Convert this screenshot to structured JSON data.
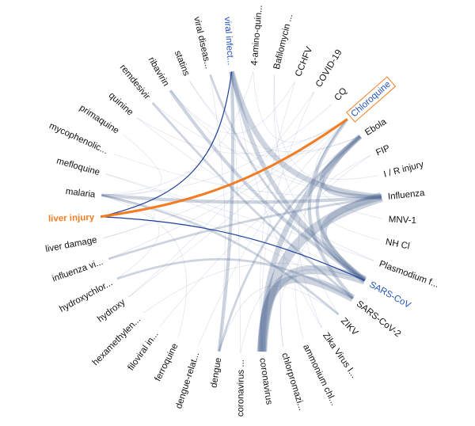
{
  "diagram": {
    "type": "hierarchical-edge-bundling",
    "colors": {
      "edge": "#4a6490",
      "highlight_edge": "#f47c20",
      "highlight_text": "#f47c20",
      "linked_text": "#2452b8",
      "linked_edge": "#1d3f9a",
      "label": "#111111"
    },
    "selected_node": "Chloroquine",
    "nodes": [
      {
        "label": "viral infect...",
        "state": "linked"
      },
      {
        "label": "4-amino-quin...",
        "state": ""
      },
      {
        "label": "Bafilomycin ...",
        "state": ""
      },
      {
        "label": "CCHFV",
        "state": ""
      },
      {
        "label": "COVID-19",
        "state": ""
      },
      {
        "label": "CQ",
        "state": ""
      },
      {
        "label": "Chloroquine",
        "state": "selected"
      },
      {
        "label": "Ebola",
        "state": ""
      },
      {
        "label": "FIP",
        "state": ""
      },
      {
        "label": "I / R injury",
        "state": ""
      },
      {
        "label": "Influenza",
        "state": ""
      },
      {
        "label": "MNV-1",
        "state": ""
      },
      {
        "label": "NH Cl",
        "state": ""
      },
      {
        "label": "Plasmodium f...",
        "state": ""
      },
      {
        "label": "SARS-CoV",
        "state": "linked"
      },
      {
        "label": "SARS-CoV-2",
        "state": ""
      },
      {
        "label": "ZIKV",
        "state": ""
      },
      {
        "label": "Zika Virus I...",
        "state": ""
      },
      {
        "label": "ammonium chl...",
        "state": ""
      },
      {
        "label": "chlorpromazi...",
        "state": ""
      },
      {
        "label": "coronavirus",
        "state": ""
      },
      {
        "label": "coronavirus ...",
        "state": ""
      },
      {
        "label": "dengue",
        "state": ""
      },
      {
        "label": "dengue-relat...",
        "state": ""
      },
      {
        "label": "ferroquine",
        "state": ""
      },
      {
        "label": "filoviral in...",
        "state": ""
      },
      {
        "label": "hexamethylen...",
        "state": ""
      },
      {
        "label": "hydroxy",
        "state": ""
      },
      {
        "label": "hydroxychlor...",
        "state": ""
      },
      {
        "label": "influenza vi...",
        "state": ""
      },
      {
        "label": "liver damage",
        "state": ""
      },
      {
        "label": "liver injury",
        "state": "highlight"
      },
      {
        "label": "malaria",
        "state": ""
      },
      {
        "label": "mefloquine",
        "state": ""
      },
      {
        "label": "mycophenolic...",
        "state": ""
      },
      {
        "label": "primaquine",
        "state": ""
      },
      {
        "label": "quinine",
        "state": ""
      },
      {
        "label": "remdesivir",
        "state": ""
      },
      {
        "label": "ribavirin",
        "state": ""
      },
      {
        "label": "statins",
        "state": ""
      },
      {
        "label": "viral diseas...",
        "state": ""
      }
    ],
    "edges": [
      [
        "Chloroquine",
        "liver injury",
        6,
        "highlight"
      ],
      [
        "viral infect...",
        "liver injury",
        2,
        "linked"
      ],
      [
        "liver injury",
        "SARS-CoV",
        2,
        "linked"
      ],
      [
        "Influenza",
        "coronavirus",
        9,
        ""
      ],
      [
        "SARS-CoV",
        "coronavirus",
        8,
        ""
      ],
      [
        "SARS-CoV-2",
        "coronavirus",
        7,
        ""
      ],
      [
        "Ebola",
        "coronavirus",
        5,
        ""
      ],
      [
        "Influenza",
        "SARS-CoV",
        6,
        ""
      ],
      [
        "viral infect...",
        "Influenza",
        5,
        ""
      ],
      [
        "viral infect...",
        "SARS-CoV",
        4,
        ""
      ],
      [
        "Ebola",
        "Influenza",
        4,
        ""
      ],
      [
        "malaria",
        "Influenza",
        3,
        ""
      ],
      [
        "ribavirin",
        "SARS-CoV",
        3,
        ""
      ],
      [
        "dengue",
        "viral infect...",
        3,
        ""
      ],
      [
        "Chloroquine",
        "SARS-CoV-2",
        3,
        ""
      ],
      [
        "Ebola",
        "SARS-CoV",
        3,
        ""
      ],
      [
        "malaria",
        "ZIKV",
        2,
        ""
      ],
      [
        "influenza vi...",
        "Influenza",
        2,
        ""
      ],
      [
        "hydroxychlor...",
        "SARS-CoV-2",
        2,
        ""
      ],
      [
        "dengue",
        "Ebola",
        2,
        ""
      ],
      [
        "remdesivir",
        "SARS-CoV-2",
        2,
        ""
      ],
      [
        "viral diseas...",
        "SARS-CoV",
        2,
        ""
      ],
      [
        "CQ",
        "malaria",
        1,
        ""
      ],
      [
        "COVID-19",
        "hydroxy",
        1,
        ""
      ],
      [
        "CCHFV",
        "ribavirin",
        1,
        ""
      ],
      [
        "Bafilomycin ...",
        "Influenza",
        1,
        ""
      ],
      [
        "4-amino-quin...",
        "malaria",
        1,
        ""
      ],
      [
        "FIP",
        "coronavirus",
        1,
        ""
      ],
      [
        "I / R injury",
        "Chloroquine",
        1,
        ""
      ],
      [
        "MNV-1",
        "Chloroquine",
        1,
        ""
      ],
      [
        "NH Cl",
        "Influenza",
        1,
        ""
      ],
      [
        "Plasmodium f...",
        "quinine",
        1,
        ""
      ],
      [
        "Plasmodium f...",
        "mefloquine",
        1,
        ""
      ],
      [
        "ZIKV",
        "Chloroquine",
        1,
        ""
      ],
      [
        "Zika Virus I...",
        "viral infect...",
        1,
        ""
      ],
      [
        "ammonium chl...",
        "Influenza",
        1,
        ""
      ],
      [
        "chlorpromazi...",
        "SARS-CoV",
        1,
        ""
      ],
      [
        "coronavirus ...",
        "viral infect...",
        1,
        ""
      ],
      [
        "dengue-relat...",
        "Chloroquine",
        1,
        ""
      ],
      [
        "ferroquine",
        "malaria",
        1,
        ""
      ],
      [
        "filoviral in...",
        "Ebola",
        1,
        ""
      ],
      [
        "hexamethylen...",
        "SARS-CoV",
        1,
        ""
      ],
      [
        "liver damage",
        "Chloroquine",
        1,
        ""
      ],
      [
        "liver damage",
        "malaria",
        1,
        ""
      ],
      [
        "mycophenolic...",
        "Influenza",
        1,
        ""
      ],
      [
        "primaquine",
        "malaria",
        1,
        ""
      ],
      [
        "quinine",
        "Chloroquine",
        1,
        ""
      ],
      [
        "statins",
        "Influenza",
        1,
        ""
      ],
      [
        "statins",
        "Ebola",
        1,
        ""
      ],
      [
        "mefloquine",
        "SARS-CoV",
        1,
        ""
      ],
      [
        "remdesivir",
        "Ebola",
        1,
        ""
      ],
      [
        "ribavirin",
        "Influenza",
        1,
        ""
      ],
      [
        "viral diseas...",
        "dengue",
        1,
        ""
      ],
      [
        "hydroxy",
        "Chloroquine",
        1,
        ""
      ],
      [
        "influenza vi...",
        "Chloroquine",
        1,
        ""
      ],
      [
        "CCHFV",
        "coronavirus",
        1,
        ""
      ],
      [
        "COVID-19",
        "coronavirus",
        1,
        ""
      ],
      [
        "4-amino-quin...",
        "Chloroquine",
        1,
        ""
      ],
      [
        "Bafilomycin ...",
        "SARS-CoV",
        1,
        ""
      ],
      [
        "malaria",
        "SARS-CoV-2",
        1,
        ""
      ],
      [
        "ZIKV",
        "dengue",
        1,
        ""
      ],
      [
        "Zika Virus I...",
        "Chloroquine",
        1,
        ""
      ],
      [
        "coronavirus ...",
        "SARS-CoV",
        1,
        ""
      ],
      [
        "FIP",
        "Influenza",
        1,
        ""
      ],
      [
        "hydroxychlor...",
        "malaria",
        1,
        ""
      ],
      [
        "chlorpromazi...",
        "Ebola",
        1,
        ""
      ]
    ]
  }
}
